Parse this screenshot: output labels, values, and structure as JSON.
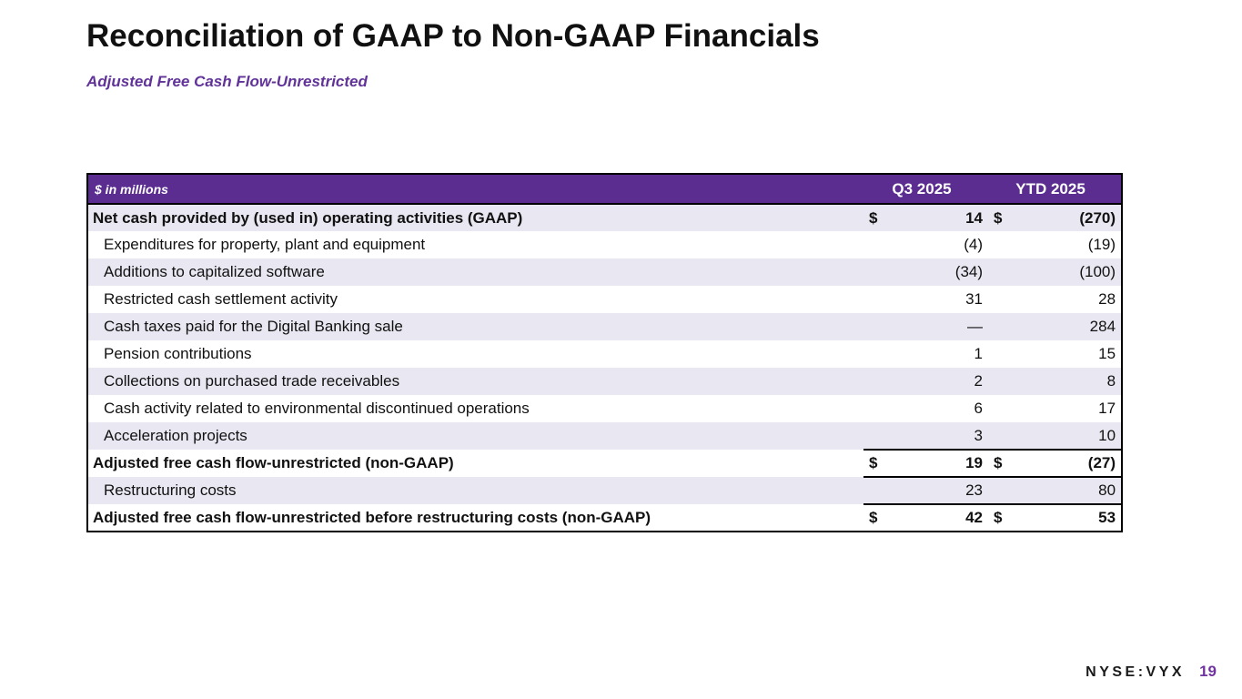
{
  "slide": {
    "title": "Reconciliation of GAAP to Non-GAAP Financials",
    "subtitle": "Adjusted Free Cash Flow-Unrestricted",
    "footer": {
      "ticker": "NYSE:VYX",
      "page_number": "19"
    }
  },
  "table": {
    "unit_label": "$ in millions",
    "columns": [
      "Q3 2025",
      "YTD 2025"
    ],
    "rows": [
      {
        "label": "Net cash provided by (used in) operating activities (GAAP)",
        "q3_dollar": "$",
        "q3": "14",
        "ytd_dollar": "$",
        "ytd": "(270)",
        "bold": true,
        "indent": false,
        "shaded": true,
        "rule_above": false
      },
      {
        "label": "Expenditures for property, plant and equipment",
        "q3_dollar": "",
        "q3": "(4)",
        "ytd_dollar": "",
        "ytd": "(19)",
        "bold": false,
        "indent": true,
        "shaded": false,
        "rule_above": false
      },
      {
        "label": "Additions to capitalized software",
        "q3_dollar": "",
        "q3": "(34)",
        "ytd_dollar": "",
        "ytd": "(100)",
        "bold": false,
        "indent": true,
        "shaded": true,
        "rule_above": false
      },
      {
        "label": "Restricted cash settlement activity",
        "q3_dollar": "",
        "q3": "31",
        "ytd_dollar": "",
        "ytd": "28",
        "bold": false,
        "indent": true,
        "shaded": false,
        "rule_above": false
      },
      {
        "label": "Cash taxes paid for the Digital Banking sale",
        "q3_dollar": "",
        "q3": "—",
        "ytd_dollar": "",
        "ytd": "284",
        "bold": false,
        "indent": true,
        "shaded": true,
        "rule_above": false
      },
      {
        "label": "Pension contributions",
        "q3_dollar": "",
        "q3": "1",
        "ytd_dollar": "",
        "ytd": "15",
        "bold": false,
        "indent": true,
        "shaded": false,
        "rule_above": false
      },
      {
        "label": "Collections on purchased trade receivables",
        "q3_dollar": "",
        "q3": "2",
        "ytd_dollar": "",
        "ytd": "8",
        "bold": false,
        "indent": true,
        "shaded": true,
        "rule_above": false
      },
      {
        "label": "Cash activity related to environmental discontinued operations",
        "q3_dollar": "",
        "q3": "6",
        "ytd_dollar": "",
        "ytd": "17",
        "bold": false,
        "indent": true,
        "shaded": false,
        "rule_above": false
      },
      {
        "label": "Acceleration projects",
        "q3_dollar": "",
        "q3": "3",
        "ytd_dollar": "",
        "ytd": "10",
        "bold": false,
        "indent": true,
        "shaded": true,
        "rule_above": false
      },
      {
        "label": "Adjusted free cash flow-unrestricted (non-GAAP)",
        "q3_dollar": "$",
        "q3": "19",
        "ytd_dollar": "$",
        "ytd": "(27)",
        "bold": true,
        "indent": false,
        "shaded": false,
        "rule_above": true
      },
      {
        "label": "Restructuring costs",
        "q3_dollar": "",
        "q3": "23",
        "ytd_dollar": "",
        "ytd": "80",
        "bold": false,
        "indent": true,
        "shaded": true,
        "rule_above": true
      },
      {
        "label": "Adjusted free cash flow-unrestricted before restructuring costs (non-GAAP)",
        "q3_dollar": "$",
        "q3": "42",
        "ytd_dollar": "$",
        "ytd": "53",
        "bold": true,
        "indent": false,
        "shaded": false,
        "rule_above": true
      }
    ]
  },
  "colors": {
    "header_purple": "#5b2d90",
    "row_shade_lavender": "#e9e8f2",
    "subtitle_purple": "#613399",
    "page_number_purple": "#7033a0",
    "text_black": "#111111"
  }
}
